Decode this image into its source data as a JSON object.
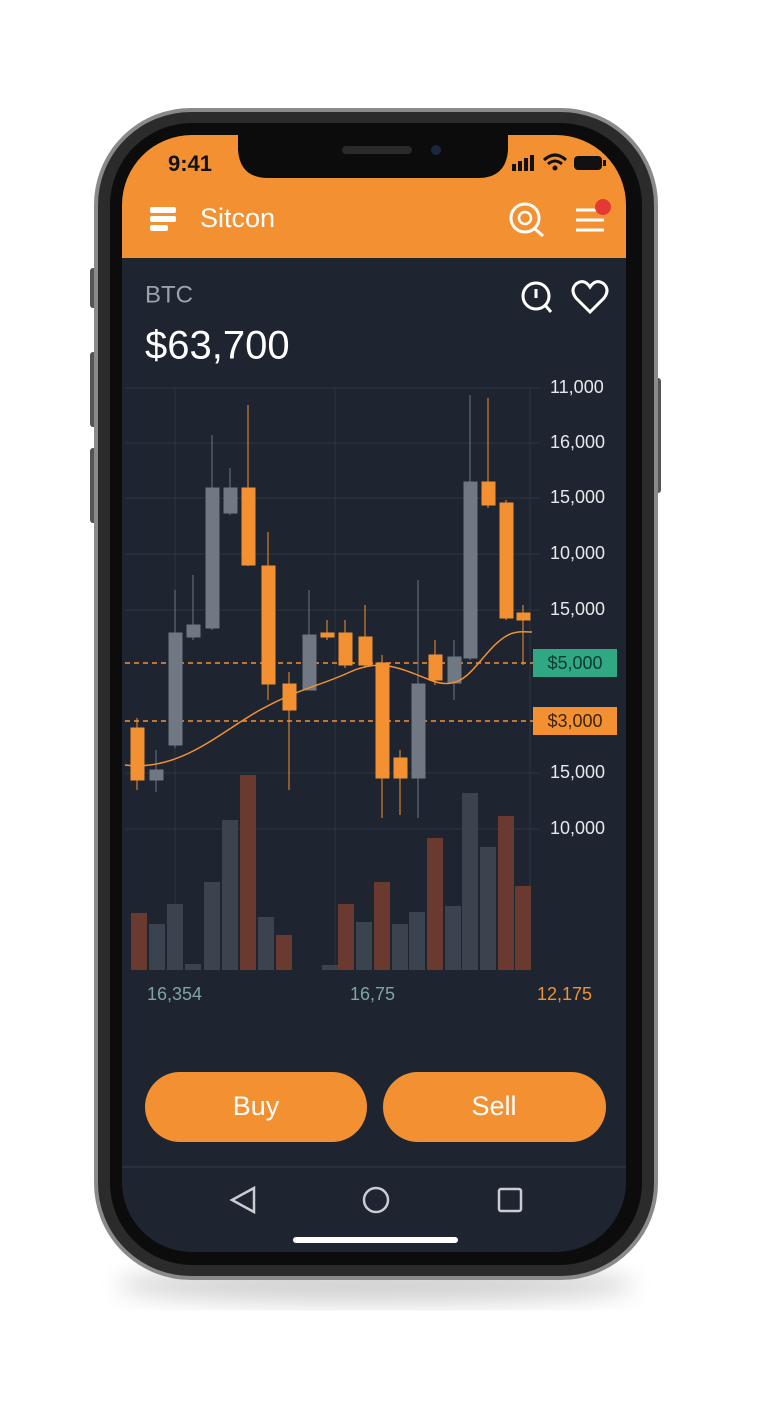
{
  "status": {
    "time": "9:41"
  },
  "header": {
    "title": "Sitcon"
  },
  "asset": {
    "symbol": "BTC",
    "price": "$63,700"
  },
  "chart": {
    "axis_labels": [
      "11,000",
      "16,000",
      "15,000",
      "10,000",
      "15,000",
      "15,000",
      "10,000"
    ],
    "price_tags": [
      "$5,000",
      "$3,000"
    ],
    "footer_labels": [
      "16,354",
      "16,75",
      "12,175"
    ]
  },
  "actions": [
    "Buy",
    "Sell"
  ]
}
